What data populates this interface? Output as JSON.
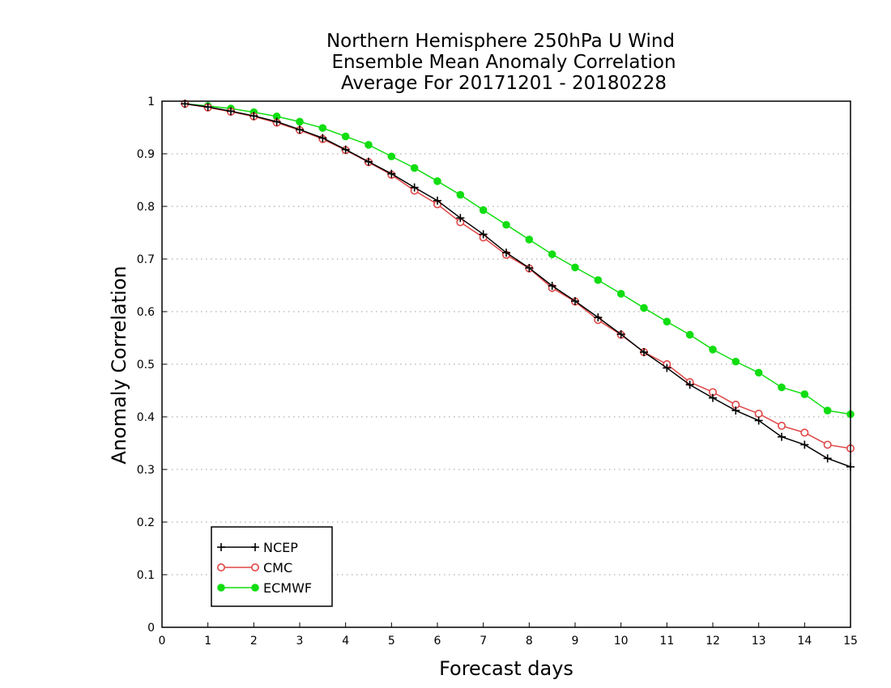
{
  "chart_data": {
    "type": "line",
    "title": [
      "Northern Hemisphere 250hPa U Wind",
      "Ensemble Mean Anomaly Correlation",
      "Average For 20171201 - 20180228"
    ],
    "xlabel": "Forecast days",
    "ylabel": "Anomaly Correlation",
    "xlim": [
      0,
      15
    ],
    "ylim": [
      0,
      1
    ],
    "x_ticks": [
      0,
      1,
      2,
      3,
      4,
      5,
      6,
      7,
      8,
      9,
      10,
      11,
      12,
      13,
      14,
      15
    ],
    "x_tick_labels": [
      "0",
      "1",
      "2",
      "3",
      "4",
      "5",
      "6",
      "7",
      "8",
      "9",
      "10",
      "11",
      "12",
      "13",
      "14",
      "15"
    ],
    "y_ticks": [
      0,
      0.1,
      0.2,
      0.3,
      0.4,
      0.5,
      0.6,
      0.7,
      0.8,
      0.9,
      1
    ],
    "y_tick_labels": [
      "0",
      "0.1",
      "0.2",
      "0.3",
      "0.4",
      "0.5",
      "0.6",
      "0.7",
      "0.8",
      "0.9",
      "1"
    ],
    "grid": "horizontal dotted",
    "legend_position": "bottom-left",
    "x": [
      0.5,
      1,
      1.5,
      2,
      2.5,
      3,
      3.5,
      4,
      4.5,
      5,
      5.5,
      6,
      6.5,
      7,
      7.5,
      8,
      8.5,
      9,
      9.5,
      10,
      10.5,
      11,
      11.5,
      12,
      12.5,
      13,
      13.5,
      14,
      14.5,
      15
    ],
    "series": [
      {
        "name": "NCEP",
        "color": "#000000",
        "marker": "plus",
        "values": [
          0.995,
          0.989,
          0.981,
          0.972,
          0.961,
          0.946,
          0.93,
          0.908,
          0.885,
          0.862,
          0.836,
          0.811,
          0.778,
          0.747,
          0.712,
          0.683,
          0.649,
          0.62,
          0.589,
          0.557,
          0.523,
          0.493,
          0.461,
          0.436,
          0.412,
          0.393,
          0.362,
          0.347,
          0.321,
          0.305
        ]
      },
      {
        "name": "CMC",
        "color": "#e04646",
        "marker": "open-circle",
        "values": [
          0.995,
          0.988,
          0.98,
          0.971,
          0.959,
          0.945,
          0.928,
          0.907,
          0.884,
          0.86,
          0.83,
          0.804,
          0.77,
          0.741,
          0.708,
          0.682,
          0.645,
          0.619,
          0.584,
          0.556,
          0.523,
          0.5,
          0.466,
          0.447,
          0.423,
          0.406,
          0.383,
          0.37,
          0.347,
          0.34
        ]
      },
      {
        "name": "ECMWF",
        "color": "#11dd11",
        "marker": "filled-circle",
        "values": [
          0.995,
          0.991,
          0.986,
          0.979,
          0.971,
          0.961,
          0.949,
          0.933,
          0.917,
          0.895,
          0.873,
          0.848,
          0.822,
          0.793,
          0.765,
          0.737,
          0.709,
          0.684,
          0.66,
          0.634,
          0.607,
          0.581,
          0.556,
          0.528,
          0.505,
          0.484,
          0.456,
          0.443,
          0.412,
          0.405
        ]
      }
    ]
  }
}
